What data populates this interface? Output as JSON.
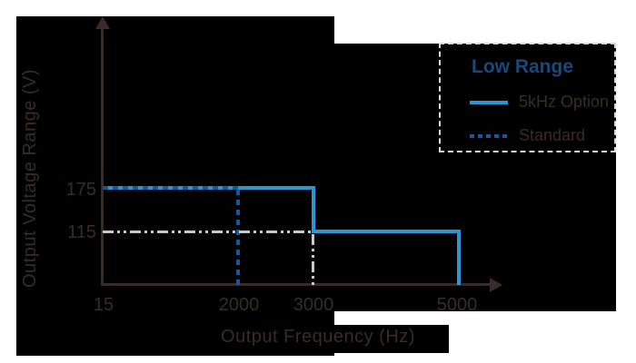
{
  "chart": {
    "ylabel": "Output Voltage Range (V)",
    "xlabel": "Output Frequency (Hz)",
    "y_tick_labels": [
      "175",
      "115"
    ],
    "x_tick_labels": [
      "15",
      "2000",
      "3000",
      "5000"
    ],
    "legend": {
      "title": "Low Range",
      "items": [
        {
          "label": "5kHz Option"
        },
        {
          "label": "Standard"
        }
      ]
    }
  },
  "chart_data": {
    "type": "line",
    "title": "",
    "xlabel": "Output Frequency (Hz)",
    "ylabel": "Output Voltage Range (V)",
    "x_ticks": [
      15,
      2000,
      3000,
      5000
    ],
    "y_ticks": [
      115,
      175
    ],
    "x_scale": "schematic-not-to-scale",
    "grid": false,
    "legend_position": "top-right",
    "legend_title": "Low Range",
    "series": [
      {
        "name": "5kHz Option",
        "style": "solid",
        "color": "#2a96d3",
        "points_hz_v": [
          [
            15,
            175
          ],
          [
            3000,
            175
          ],
          [
            3000,
            115
          ],
          [
            5000,
            115
          ],
          [
            5000,
            0
          ]
        ]
      },
      {
        "name": "Standard",
        "style": "dashed",
        "color": "#19579b",
        "points_hz_v": [
          [
            15,
            175
          ],
          [
            2000,
            175
          ],
          [
            2000,
            0
          ]
        ]
      },
      {
        "name": "115V guide",
        "style": "dash-dot",
        "color": "#c9c9c9",
        "points_hz_v": [
          [
            15,
            115
          ],
          [
            3000,
            115
          ],
          [
            3000,
            0
          ]
        ]
      }
    ],
    "colors": {
      "background_panel": "#000000",
      "page_background": "#ffffff",
      "axis_and_text": "#3a2b28",
      "solid_line": "#2a96d3",
      "dashed_line": "#19579b",
      "guide_line": "#c9c9c9",
      "legend_title": "#17497f",
      "legend_border": "#d9d9d9"
    }
  }
}
